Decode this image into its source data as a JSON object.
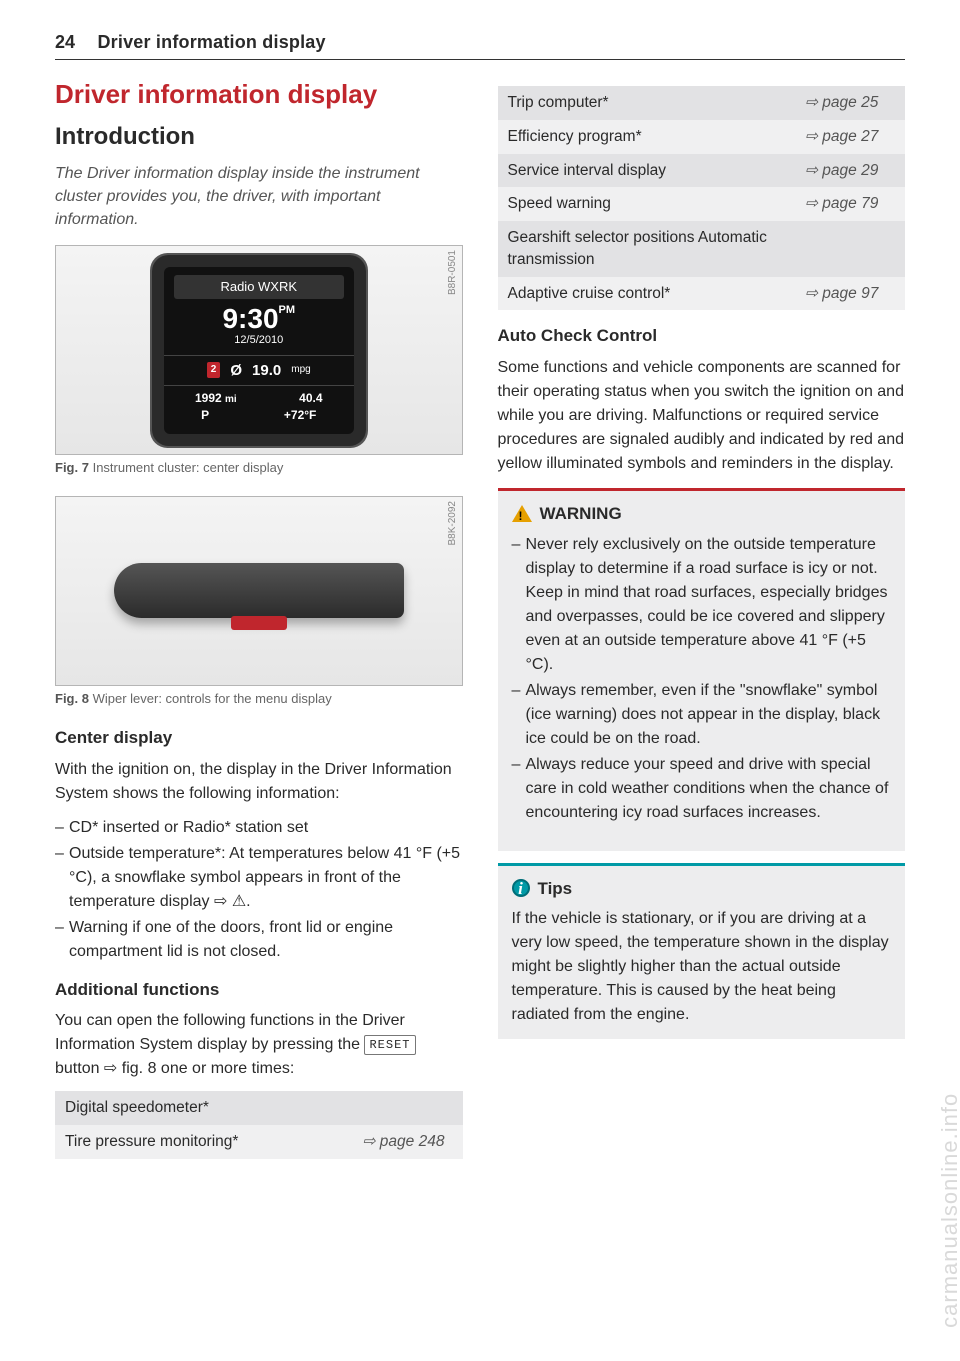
{
  "page": {
    "number": "24",
    "header": "Driver information display"
  },
  "section_title": "Driver information display",
  "subsection_title": "Introduction",
  "intro": "The Driver information display inside the instrument cluster provides you, the driver, with important information.",
  "fig7": {
    "code": "B8R-0501",
    "caption_label": "Fig. 7",
    "caption": "Instrument cluster: center display",
    "radio": "Radio WXRK",
    "time": "9:30",
    "ampm": "PM",
    "date": "12/5/2010",
    "badge": "2",
    "mpg_val": "19.0",
    "mpg_unit": "mpg",
    "odo": "1992",
    "odo_unit": "mi",
    "trip": "40.4",
    "gear": "P",
    "temp": "+72°F"
  },
  "fig8": {
    "code": "B8K-2092",
    "caption_label": "Fig. 8",
    "caption": "Wiper lever: controls for the menu display"
  },
  "center_display": {
    "head": "Center display",
    "intro": "With the ignition on, the display in the Driver Information System shows the following information:",
    "items": [
      "CD* inserted or Radio* station set",
      "Outside temperature*: At temperatures below 41 °F (+5 °C), a snowflake symbol appears in front of the temperature display ⇨ ⚠.",
      "Warning if one of the doors, front lid or engine compartment lid is not closed."
    ]
  },
  "additional": {
    "head": "Additional functions",
    "text_a": "You can open the following functions in the Driver Information System display by pressing the ",
    "reset": "RESET",
    "text_b": " button ⇨ fig. 8 one or more times:"
  },
  "func_rows": [
    {
      "name": "Digital speedometer*",
      "page": ""
    },
    {
      "name": "Tire pressure monitoring*",
      "page": "⇨ page 248"
    },
    {
      "name": "Trip computer*",
      "page": "⇨ page 25"
    },
    {
      "name": "Efficiency program*",
      "page": "⇨ page 27"
    },
    {
      "name": "Service interval display",
      "page": "⇨ page 29"
    },
    {
      "name": "Speed warning",
      "page": "⇨ page 79"
    },
    {
      "name": "Gearshift selector positions Automatic transmission",
      "page": ""
    },
    {
      "name": "Adaptive cruise control*",
      "page": "⇨ page 97"
    }
  ],
  "auto_check": {
    "head": "Auto Check Control",
    "text": "Some functions and vehicle components are scanned for their operating status when you switch the ignition on and while you are driving. Malfunctions or required service procedures are signaled audibly and indicated by red and yellow illuminated symbols and reminders in the display."
  },
  "warning": {
    "head": "WARNING",
    "items": [
      "Never rely exclusively on the outside temperature display to determine if a road surface is icy or not. Keep in mind that road surfaces, especially bridges and overpasses, could be ice covered and slippery even at an outside temperature above 41 °F (+5 °C).",
      "Always remember, even if the \"snowflake\" symbol (ice warning) does not appear in the display, black ice could be on the road.",
      "Always reduce your speed and drive with special care in cold weather conditions when the chance of encountering icy road surfaces increases."
    ]
  },
  "tips": {
    "head": "Tips",
    "text": "If the vehicle is stationary, or if you are driving at a very low speed, the temperature shown in the display might be slightly higher than the actual outside temperature. This is caused by the heat being radiated from the engine."
  },
  "watermark": "carmanualsonline.info"
}
